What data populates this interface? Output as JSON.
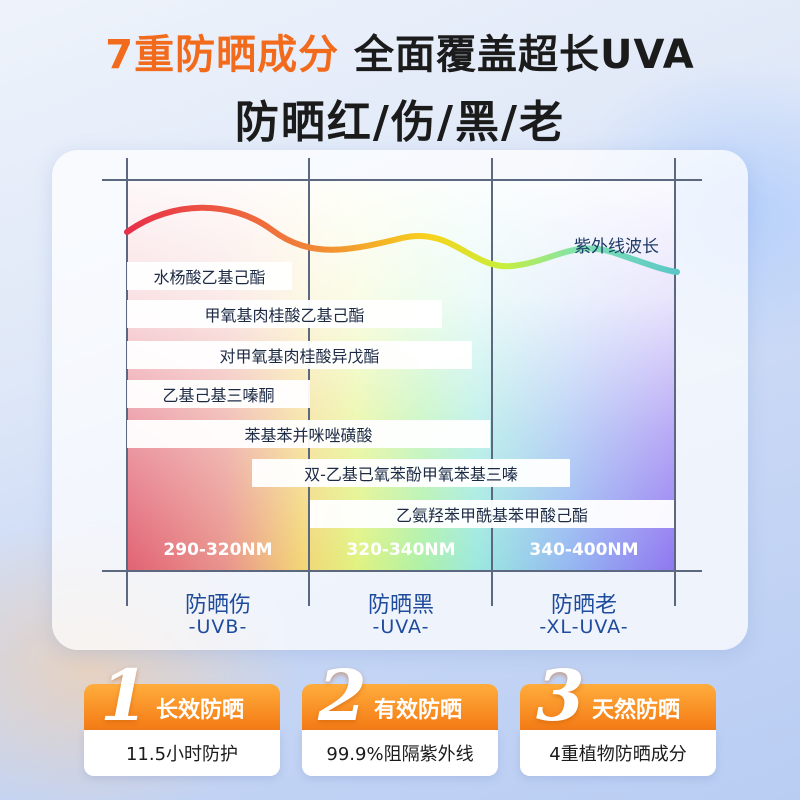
{
  "header": {
    "title_highlight": "7重防晒成分",
    "title_rest": "全面覆盖超长UVA",
    "subtitle": "防晒红/伤/黑/老"
  },
  "diagram": {
    "wave_label": "紫外线波长",
    "ingredients": [
      "水杨酸乙基己酯",
      "甲氧基肉桂酸乙基己酯",
      "对甲氧基肉桂酸异戊酯",
      "乙基己基三嗪酮",
      "苯基苯并咪唑磺酸",
      "双-乙基已氧苯酚甲氧苯基三嗪",
      "乙氨羟苯甲酰基苯甲酸己酯"
    ],
    "bands": [
      {
        "range": "290-320NM",
        "name": "防晒伤",
        "type": "-UVB-"
      },
      {
        "range": "320-340NM",
        "name": "防晒黑",
        "type": "-UVA-"
      },
      {
        "range": "340-400NM",
        "name": "防晒老",
        "type": "-XL-UVA-"
      }
    ]
  },
  "features": [
    {
      "number": "1",
      "title": "长效防晒",
      "detail": "11.5小时防护"
    },
    {
      "number": "2",
      "title": "有效防晒",
      "detail": "99.9%阻隔紫外线"
    },
    {
      "number": "3",
      "title": "天然防晒",
      "detail": "4重植物防晒成分"
    }
  ],
  "colors": {
    "accent_orange": "#f26a1b",
    "band_text_blue": "#1e4b9c"
  }
}
